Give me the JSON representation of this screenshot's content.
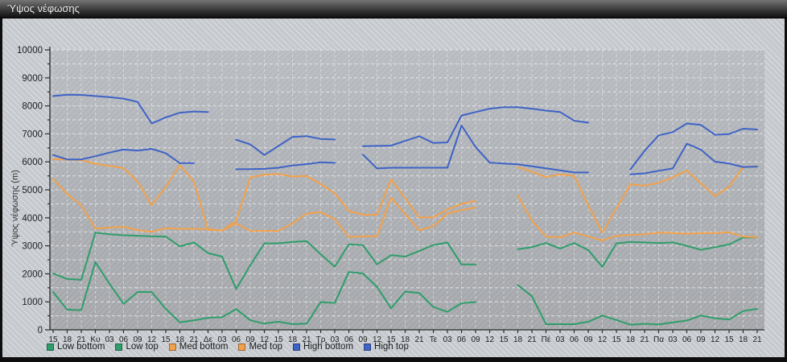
{
  "window": {
    "title": "Ύψος νέφωσης"
  },
  "y_axis": {
    "label": "Ύψος νέφωσης (m)"
  },
  "colors": {
    "low": "#2f9d6b",
    "med": "#f2a14b",
    "high": "#3e63c6",
    "titlebar_text": "#f0f0f0",
    "axis": "#2b2b2b",
    "grid": "#eef0f2"
  },
  "chart_data": {
    "type": "line",
    "title": "Ύψος νέφωσης",
    "xlabel": "",
    "ylabel": "Ύψος νέφωσης (m)",
    "ylim": [
      0,
      10000
    ],
    "ytick_major_step": 1000,
    "ytick_minor_step": 500,
    "grid": "on",
    "legend_position": "bottom-left",
    "x_labels": [
      "15",
      "18",
      "21",
      "Κυ",
      "03",
      "06",
      "09",
      "12",
      "15",
      "18",
      "21",
      "Δε",
      "03",
      "06",
      "09",
      "12",
      "15",
      "18",
      "21",
      "Τρ",
      "03",
      "06",
      "09",
      "12",
      "15",
      "18",
      "21",
      "Τε",
      "03",
      "06",
      "09",
      "12",
      "15",
      "18",
      "21",
      "Πέ",
      "03",
      "06",
      "09",
      "12",
      "15",
      "18",
      "21",
      "Πα",
      "03",
      "06",
      "09",
      "12",
      "15",
      "18",
      "21"
    ],
    "series": [
      {
        "name": "Low bottom",
        "color": "#2f9d6b",
        "values": [
          1350,
          720,
          700,
          2420,
          1650,
          930,
          1350,
          1350,
          750,
          270,
          335,
          430,
          450,
          740,
          340,
          220,
          290,
          200,
          220,
          990,
          960,
          2065,
          2015,
          1535,
          770,
          1365,
          1315,
          815,
          640,
          950,
          990,
          null,
          null,
          1600,
          1200,
          200,
          200,
          200,
          290,
          510,
          350,
          180,
          215,
          190,
          265,
          330,
          510,
          415,
          365,
          670,
          750
        ]
      },
      {
        "name": "Low top",
        "color": "#2f9d6b",
        "values": [
          2015,
          1815,
          1785,
          3475,
          3410,
          3380,
          3360,
          3340,
          3330,
          2980,
          3120,
          2740,
          2615,
          1460,
          2305,
          3090,
          3090,
          3140,
          3170,
          2700,
          2255,
          3055,
          3025,
          2335,
          2670,
          2615,
          2820,
          3030,
          3120,
          2335,
          2335,
          null,
          null,
          2880,
          2950,
          3100,
          2900,
          3100,
          2850,
          2250,
          3090,
          3140,
          3120,
          3100,
          3120,
          3000,
          2860,
          2950,
          3050,
          3295,
          3300
        ]
      },
      {
        "name": "Med bottom",
        "color": "#f2a14b",
        "values": [
          5390,
          4850,
          4450,
          3620,
          3650,
          3680,
          3560,
          3505,
          3630,
          3610,
          3605,
          3600,
          3545,
          3795,
          3535,
          3535,
          3535,
          3800,
          4150,
          4200,
          3955,
          3315,
          3340,
          3340,
          4725,
          4130,
          3555,
          3700,
          4150,
          4275,
          4370,
          null,
          null,
          4800,
          3900,
          3330,
          3305,
          3475,
          3330,
          3190,
          3360,
          3390,
          3410,
          3475,
          3455,
          3430,
          3455,
          3455,
          3485,
          3330,
          3305
        ]
      },
      {
        "name": "Med top",
        "color": "#f2a14b",
        "values": [
          6095,
          6080,
          6060,
          5930,
          5855,
          5780,
          5300,
          4450,
          5100,
          5880,
          5300,
          3575,
          3545,
          3890,
          5445,
          5540,
          5570,
          5475,
          5495,
          5205,
          4880,
          4245,
          4110,
          4110,
          5370,
          4700,
          4015,
          4015,
          4300,
          4500,
          4600,
          null,
          null,
          5810,
          5650,
          5455,
          5555,
          5500,
          4450,
          3475,
          4340,
          5200,
          5150,
          5250,
          5450,
          5685,
          5235,
          4775,
          5110,
          5815,
          5830
        ]
      },
      {
        "name": "High bottom",
        "color": "#3e63c6",
        "values": [
          6245,
          6085,
          6085,
          6200,
          6330,
          6440,
          6400,
          6465,
          6310,
          5955,
          5955,
          null,
          null,
          5735,
          5740,
          5750,
          5790,
          5870,
          5920,
          5985,
          5965,
          null,
          6260,
          5765,
          5790,
          5790,
          5790,
          5790,
          5790,
          7300,
          6530,
          5975,
          5940,
          5910,
          5840,
          5770,
          5695,
          5620,
          5620,
          null,
          null,
          5555,
          5590,
          5680,
          5765,
          6650,
          6435,
          6005,
          5940,
          5815,
          5830
        ]
      },
      {
        "name": "High top",
        "color": "#3e63c6",
        "values": [
          8350,
          8400,
          8390,
          8350,
          8310,
          8260,
          8140,
          7370,
          7590,
          7755,
          7800,
          7780,
          null,
          6790,
          6625,
          6245,
          6565,
          6890,
          6920,
          6820,
          6800,
          null,
          6560,
          6570,
          6580,
          6750,
          6915,
          6675,
          6695,
          7655,
          7780,
          7900,
          7950,
          7950,
          7900,
          7830,
          7780,
          7470,
          7400,
          null,
          null,
          5735,
          6390,
          6945,
          7060,
          7370,
          7320,
          6965,
          6995,
          7185,
          7155
        ]
      }
    ]
  }
}
